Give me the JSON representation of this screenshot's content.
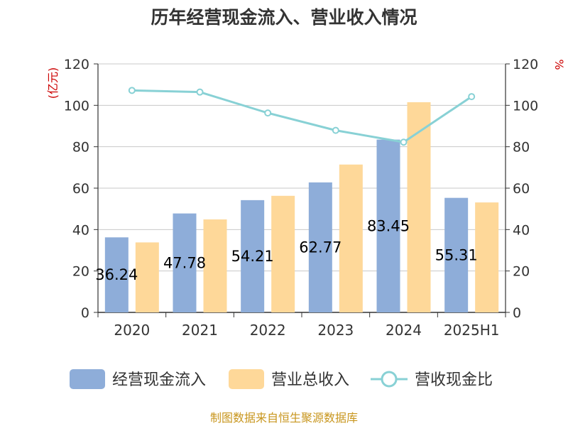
{
  "chart_data": {
    "type": "bar",
    "title": "历年经营现金流入、营业收入情况",
    "categories": [
      "2020",
      "2021",
      "2022",
      "2023",
      "2024",
      "2025H1"
    ],
    "left_axis": {
      "unit": "(亿元)",
      "ylim": [
        0,
        120
      ],
      "ticks": [
        0,
        20,
        40,
        60,
        80,
        100,
        120
      ]
    },
    "right_axis": {
      "unit": "%",
      "ylim": [
        0,
        120
      ],
      "ticks": [
        0,
        20,
        40,
        60,
        80,
        100,
        120
      ]
    },
    "series": [
      {
        "name": "经营现金流入",
        "type": "bar",
        "axis": "left",
        "color": "#8eadd9",
        "values": [
          36.24,
          47.78,
          54.21,
          62.77,
          83.45,
          55.31
        ],
        "labels": [
          "36.24",
          "47.78",
          "54.21",
          "62.77",
          "83.45",
          "55.31"
        ]
      },
      {
        "name": "营业总收入",
        "type": "bar",
        "axis": "left",
        "color": "#fed899",
        "values": [
          33.8,
          44.9,
          56.3,
          71.4,
          101.5,
          53.1
        ]
      },
      {
        "name": "营收现金比",
        "type": "line",
        "axis": "right",
        "color": "#88d1d5",
        "values": [
          107.2,
          106.4,
          96.3,
          87.9,
          82.2,
          104.2
        ]
      }
    ],
    "grid": true,
    "legend_position": "bottom"
  },
  "source": "制图数据来自恒生聚源数据库"
}
